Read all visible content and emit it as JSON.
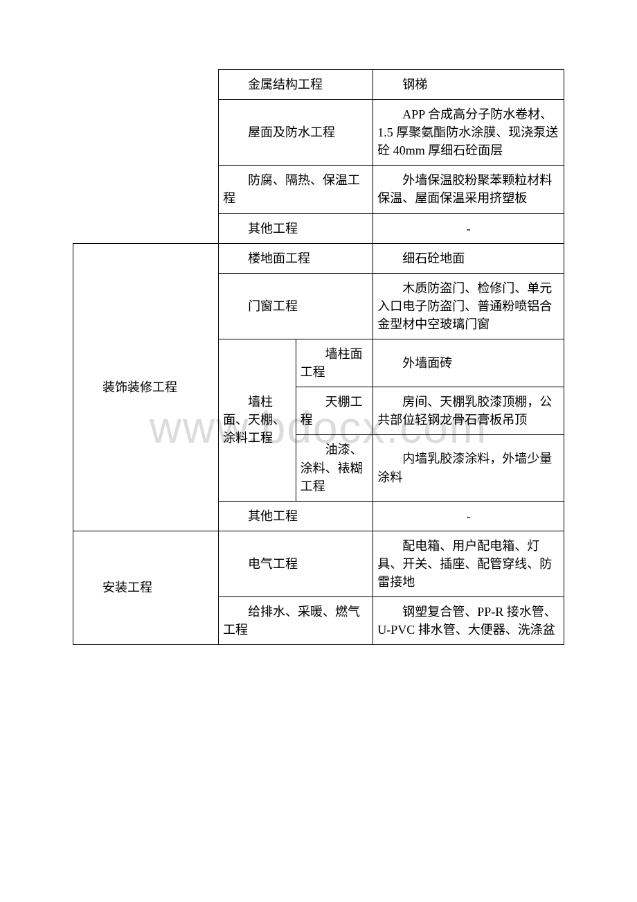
{
  "watermark": "www.bdocx.com",
  "table": {
    "border_color": "#000000",
    "font_size": 18,
    "background_color": "#ffffff",
    "text_color": "#000000",
    "watermark_color": "#dcdcdc",
    "sections": [
      {
        "category": "",
        "rows": [
          {
            "sub": "金属结构工程",
            "detail": "",
            "desc": "钢梯"
          },
          {
            "sub": "屋面及防水工程",
            "detail": "",
            "desc": "APP 合成高分子防水卷材、1.5 厚聚氨酯防水涂膜、现浇泵送砼 40mm 厚细石砼面层"
          },
          {
            "sub": "防腐、隔热、保温工程",
            "detail": "",
            "desc": "外墙保温胶粉聚苯颗粒材料保温、屋面保温采用挤塑板"
          },
          {
            "sub": "其他工程",
            "detail": "",
            "desc": "-"
          }
        ]
      },
      {
        "category": "装饰装修工程",
        "rows": [
          {
            "sub": "楼地面工程",
            "detail": "",
            "desc": "细石砼地面"
          },
          {
            "sub": "门窗工程",
            "detail": "",
            "desc": "木质防盗门、检修门、单元入口电子防盗门、普通粉喷铝合金型材中空玻璃门窗"
          },
          {
            "sub": "墙柱面、天棚、涂料工程",
            "detail": "墙柱面工程",
            "desc": "外墙面砖"
          },
          {
            "sub": "",
            "detail": "天棚工程",
            "desc": "房间、天棚乳胶漆顶棚，公共部位轻钢龙骨石膏板吊顶"
          },
          {
            "sub": "",
            "detail": "油漆、涂料、裱糊工程",
            "desc": "内墙乳胶漆涂料，外墙少量涂料"
          },
          {
            "sub": "其他工程",
            "detail": "",
            "desc": "-"
          }
        ]
      },
      {
        "category": "安装工程",
        "rows": [
          {
            "sub": "电气工程",
            "detail": "",
            "desc": "配电箱、用户配电箱、灯具、开关、插座、配管穿线、防雷接地"
          },
          {
            "sub": "给排水、采暖、燃气工程",
            "detail": "",
            "desc": "钢塑复合管、PP-R 接水管、U-PVC 排水管、大便器、洗涤盆"
          }
        ]
      }
    ]
  }
}
